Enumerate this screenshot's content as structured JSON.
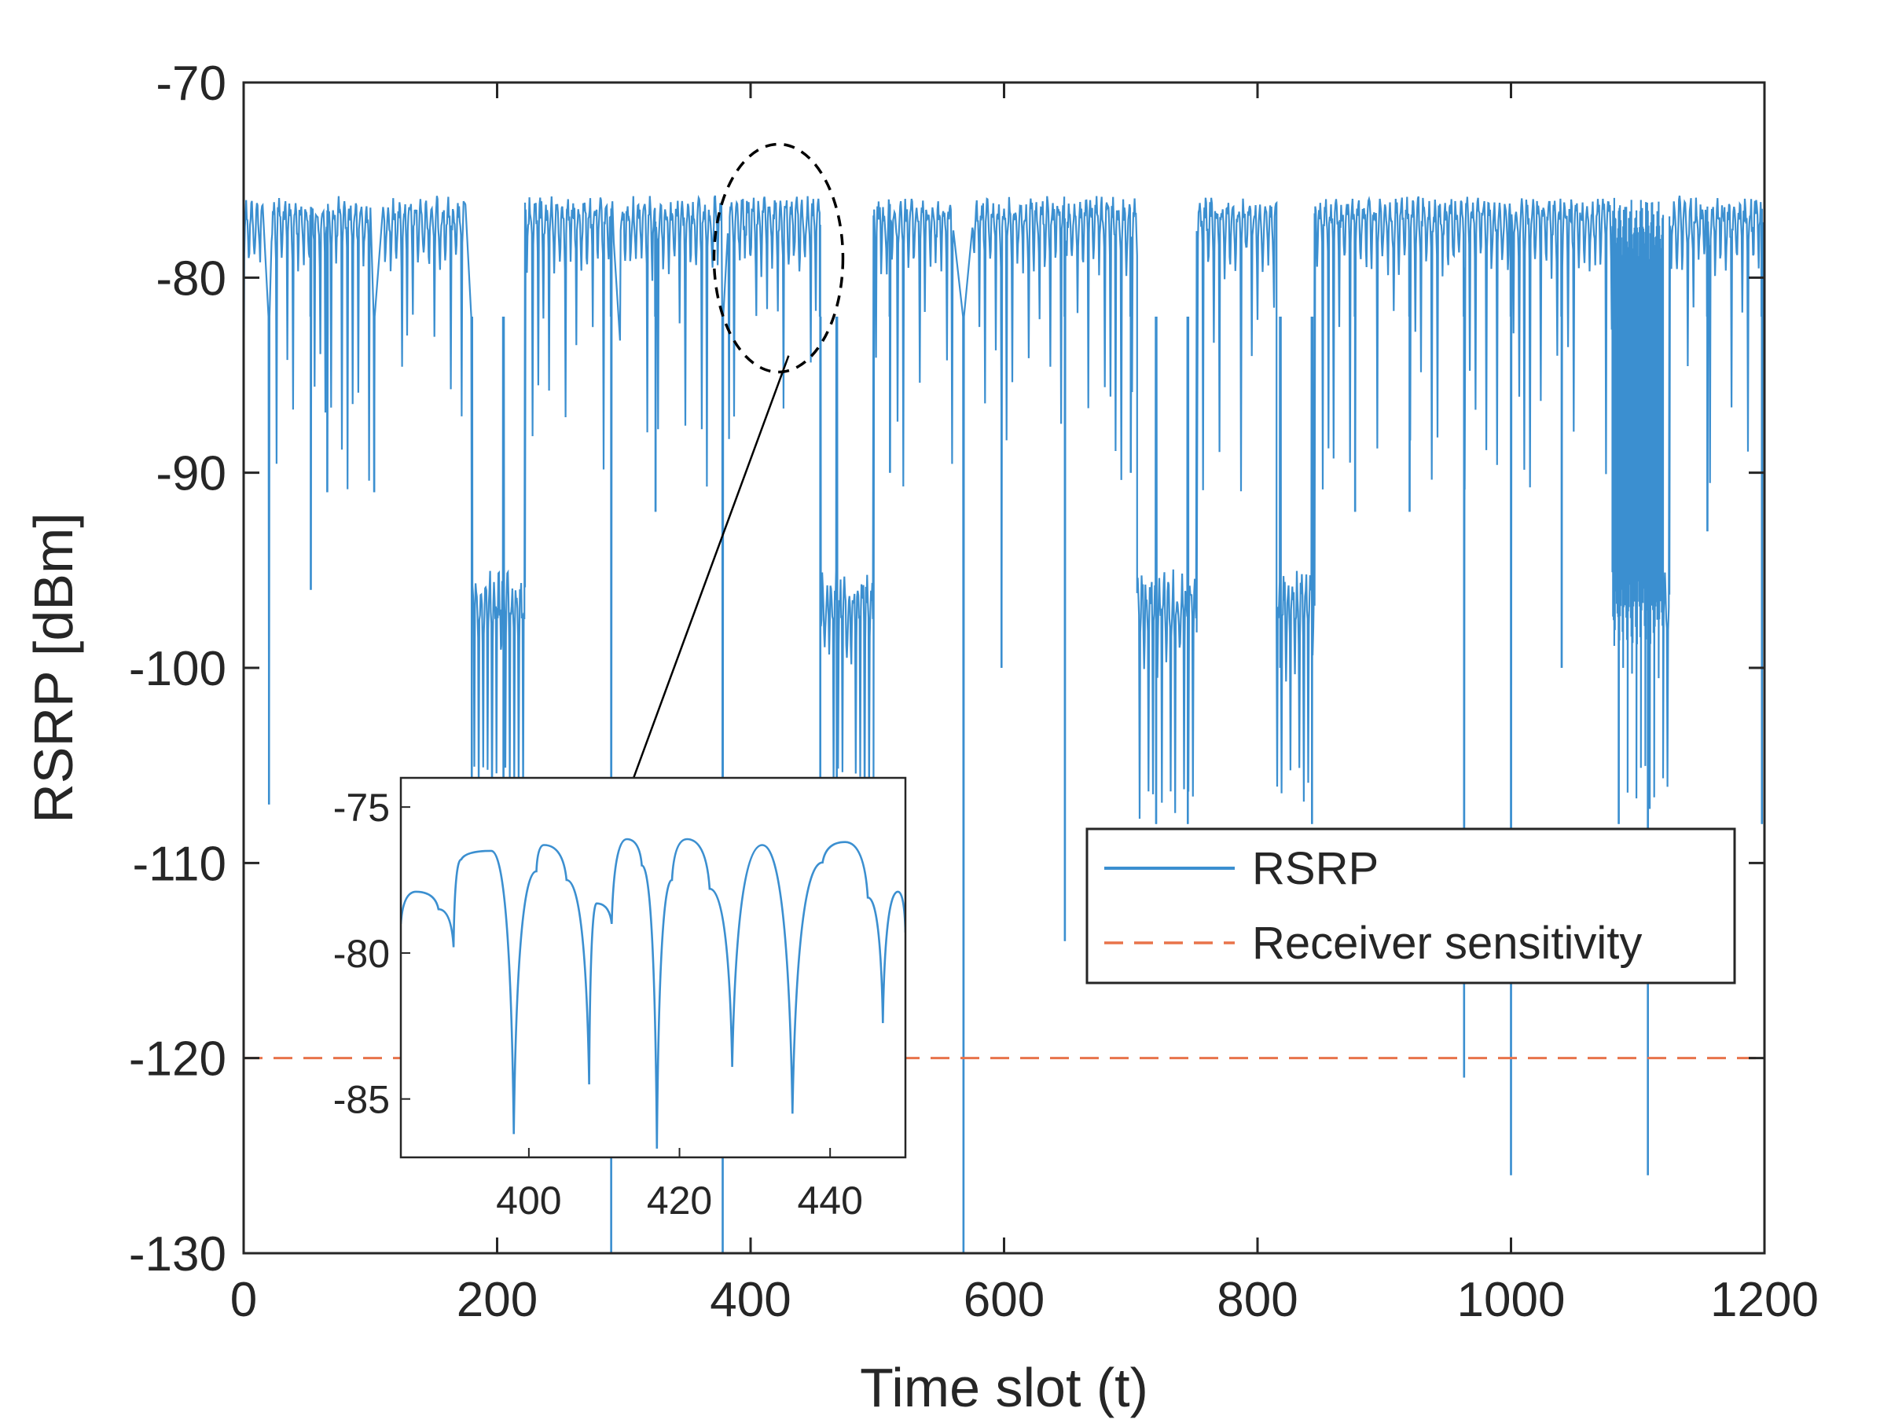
{
  "chart_data": {
    "type": "line",
    "xlabel": "Time slot (t)",
    "ylabel": "RSRP [dBm]",
    "xlim": [
      0,
      1200
    ],
    "ylim": [
      -130,
      -70
    ],
    "xticks": [
      0,
      200,
      400,
      600,
      800,
      1000,
      1200
    ],
    "yticks": [
      -70,
      -80,
      -90,
      -100,
      -110,
      -120,
      -130
    ],
    "grid": false,
    "legend": {
      "placement": "right, lower-middle",
      "entries": [
        "RSRP",
        "Receiver sensitivity"
      ]
    },
    "colors": {
      "rsrp": "#3b8fd0",
      "threshold": "#e8734a",
      "axis": "#262626"
    },
    "series": [
      {
        "name": "RSRP",
        "style": "solid",
        "high_segments": [
          [
            0,
            15
          ],
          [
            22,
            100
          ],
          [
            110,
            175
          ],
          [
            222,
            292
          ],
          [
            297,
            377
          ],
          [
            382,
            455
          ],
          [
            497,
            560
          ],
          [
            575,
            705
          ],
          [
            752,
            815
          ],
          [
            845,
            1120
          ],
          [
            1125,
            1200
          ]
        ],
        "rsrp_range_in_high_segments": [
          -85,
          -75.5
        ],
        "deep_fades": [
          {
            "x": 20,
            "y": -107
          },
          {
            "x": 53,
            "y": -96
          },
          {
            "x": 66,
            "y": -91
          },
          {
            "x": 103,
            "y": -91
          },
          {
            "x": 180,
            "y": -106
          },
          {
            "x": 205,
            "y": -108
          },
          {
            "x": 290,
            "y": -130
          },
          {
            "x": 325,
            "y": -92
          },
          {
            "x": 378,
            "y": -130
          },
          {
            "x": 455,
            "y": -110
          },
          {
            "x": 468,
            "y": -108
          },
          {
            "x": 510,
            "y": -90
          },
          {
            "x": 568,
            "y": -130
          },
          {
            "x": 598,
            "y": -100
          },
          {
            "x": 648,
            "y": -114
          },
          {
            "x": 700,
            "y": -90
          },
          {
            "x": 720,
            "y": -108
          },
          {
            "x": 745,
            "y": -108
          },
          {
            "x": 818,
            "y": -100
          },
          {
            "x": 843,
            "y": -108
          },
          {
            "x": 877,
            "y": -92
          },
          {
            "x": 920,
            "y": -92
          },
          {
            "x": 963,
            "y": -121
          },
          {
            "x": 1000,
            "y": -126
          },
          {
            "x": 1040,
            "y": -100
          },
          {
            "x": 1085,
            "y": -108
          },
          {
            "x": 1108,
            "y": -126
          },
          {
            "x": 1155,
            "y": -93
          },
          {
            "x": 1198,
            "y": -108
          }
        ],
        "drop_plateaus": [
          {
            "x": [
              180,
              222
            ],
            "y": [
              -94,
              -108
            ]
          },
          {
            "x": [
              455,
              497
            ],
            "y": [
              -94,
              -108
            ]
          },
          {
            "x": [
              705,
              752
            ],
            "y": [
              -94,
              -108
            ]
          },
          {
            "x": [
              815,
              845
            ],
            "y": [
              -94,
              -108
            ]
          },
          {
            "x": [
              1080,
              1125
            ],
            "y": [
              -94,
              -108
            ]
          }
        ]
      },
      {
        "name": "Receiver sensitivity",
        "style": "dashed",
        "x": [
          0,
          1200
        ],
        "y": [
          -120,
          -120
        ]
      }
    ],
    "annotations": [
      {
        "type": "dashed-ellipse",
        "center": {
          "x": 422,
          "y": -79
        },
        "label": ""
      },
      {
        "type": "arrow",
        "from": {
          "x": 430,
          "y": -84
        },
        "to": {
          "x": 300,
          "y": -107
        },
        "label": ""
      }
    ],
    "inset": {
      "xlim": [
        383,
        450
      ],
      "ylim": [
        -87,
        -74
      ],
      "xticks": [
        400,
        420,
        440
      ],
      "yticks": [
        -75,
        -80,
        -85
      ],
      "x": [
        383,
        385,
        388,
        390,
        391,
        395,
        398,
        401,
        402,
        405,
        408,
        409,
        411,
        413,
        415,
        417,
        419,
        421,
        424,
        427,
        431,
        435,
        439,
        442,
        445,
        447,
        449,
        450
      ],
      "y": [
        -79,
        -77.9,
        -78.5,
        -79.8,
        -76.8,
        -76.5,
        -86.2,
        -77.2,
        -76.3,
        -77.5,
        -84.5,
        -78.3,
        -79,
        -76.1,
        -77,
        -86.7,
        -77.5,
        -76.1,
        -77.8,
        -83.9,
        -76.3,
        -85.5,
        -76.9,
        -76.2,
        -78.1,
        -82.4,
        -77.9,
        -79.3
      ]
    }
  }
}
